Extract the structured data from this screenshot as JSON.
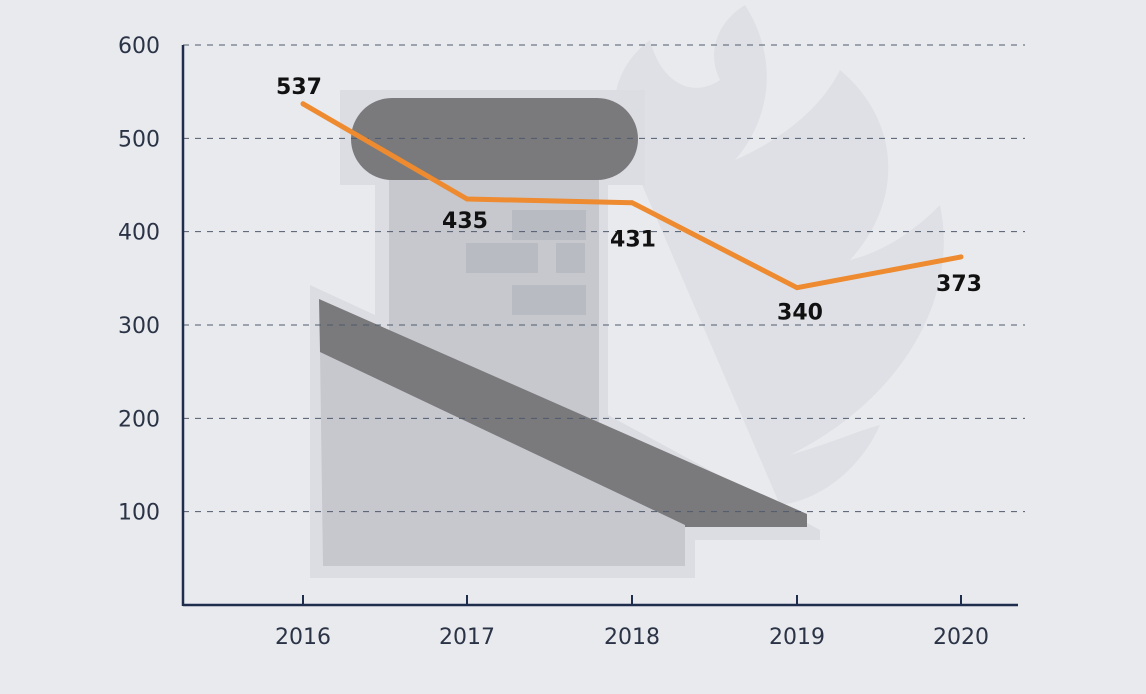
{
  "chart_data": {
    "type": "line",
    "title": "",
    "xlabel": "",
    "ylabel": "",
    "categories": [
      "2016",
      "2017",
      "2018",
      "2019",
      "2020"
    ],
    "series": [
      {
        "values": [
          537,
          435,
          431,
          340,
          373
        ],
        "color": "#ee8a2f"
      }
    ],
    "data_labels": [
      "537",
      "435",
      "431",
      "340",
      "373"
    ],
    "yticks": [
      100,
      200,
      300,
      400,
      500,
      600
    ],
    "ytick_labels": [
      "100",
      "200",
      "300",
      "400",
      "500",
      "600"
    ],
    "ylim": [
      0,
      600
    ],
    "grid": "horizontal dashed",
    "axis_color": "#1f2d4d",
    "background_color": "#e9eaee",
    "background_illustration": "chimney-with-flames-icon"
  }
}
